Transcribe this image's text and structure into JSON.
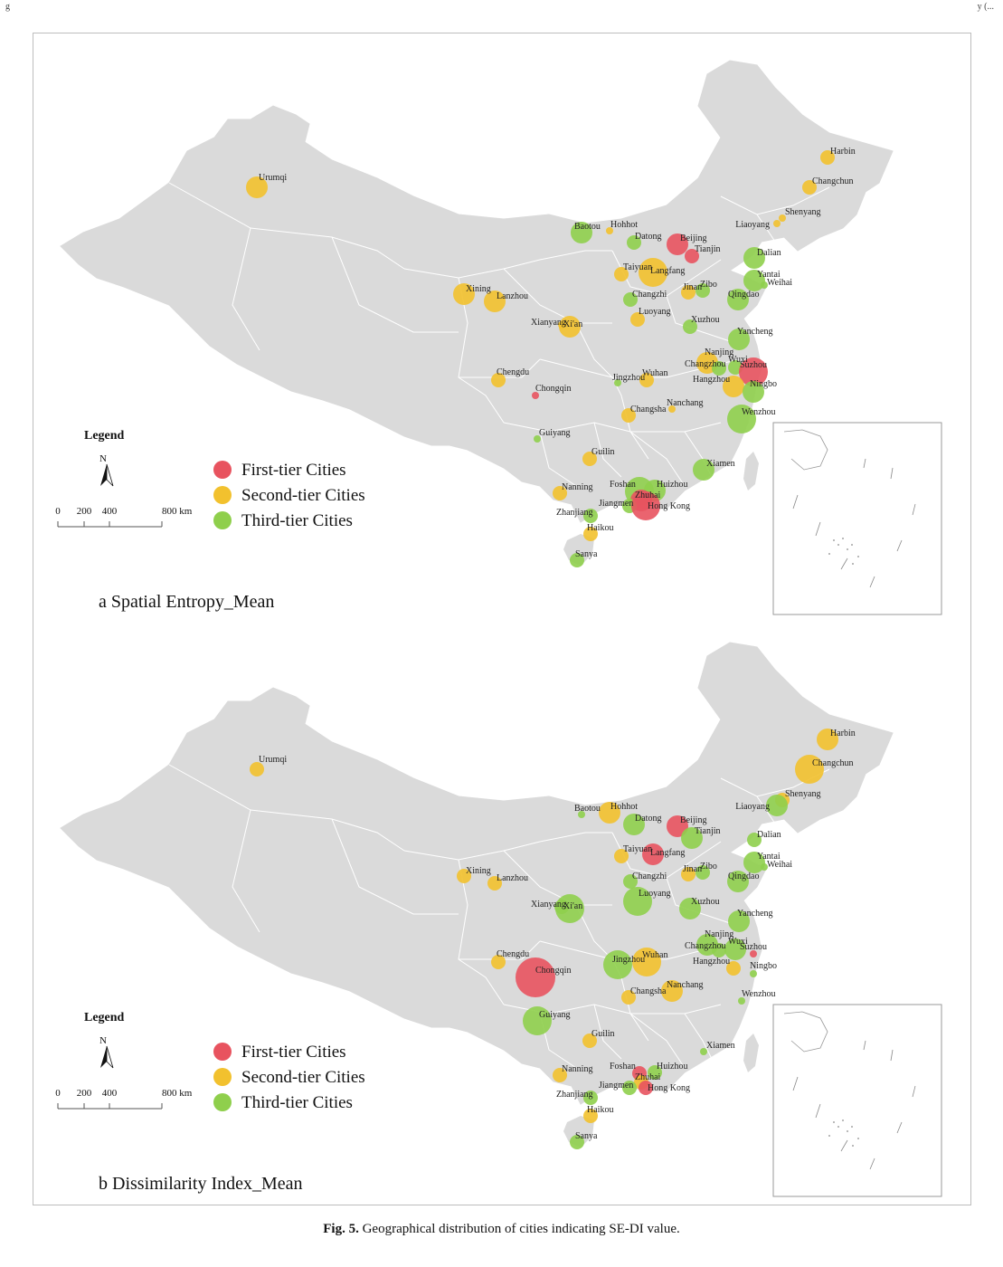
{
  "header": {
    "left_text": "g",
    "right_text": "y (..."
  },
  "caption": {
    "label": "Fig. 5.",
    "text": " Geographical distribution of cities indicating SE-DI value."
  },
  "legend": {
    "title": "Legend",
    "north": "N",
    "scale": [
      "0",
      "200",
      "400",
      "800 km"
    ],
    "items": [
      {
        "key": "first",
        "label": "First-tier Cities",
        "color": "#e8535f"
      },
      {
        "key": "second",
        "label": "Second-tier Cities",
        "color": "#f2c12e"
      },
      {
        "key": "third",
        "label": "Third-tier Cities",
        "color": "#8fcf4c"
      }
    ]
  },
  "colors": {
    "land": "#dadada",
    "boundary": "#ffffff",
    "frame": "#bdbdbd"
  },
  "panels": [
    {
      "id": "a",
      "title": "a Spatial Entropy_Mean",
      "cities": [
        {
          "name": "Urumqi",
          "tier": "second",
          "size": "medium"
        },
        {
          "name": "Harbin",
          "tier": "second",
          "size": "small"
        },
        {
          "name": "Changchun",
          "tier": "second",
          "size": "small"
        },
        {
          "name": "Shenyang",
          "tier": "second",
          "size": "tiny"
        },
        {
          "name": "Liaoyang",
          "tier": "second",
          "size": "tiny"
        },
        {
          "name": "Baotou",
          "tier": "third",
          "size": "medium"
        },
        {
          "name": "Hohhot",
          "tier": "second",
          "size": "tiny"
        },
        {
          "name": "Datong",
          "tier": "third",
          "size": "small"
        },
        {
          "name": "Beijing",
          "tier": "first",
          "size": "medium"
        },
        {
          "name": "Tianjin",
          "tier": "first",
          "size": "small"
        },
        {
          "name": "Langfang",
          "tier": "second",
          "size": "large"
        },
        {
          "name": "Dalian",
          "tier": "third",
          "size": "medium"
        },
        {
          "name": "Taiyuan",
          "tier": "second",
          "size": "small"
        },
        {
          "name": "Yantai",
          "tier": "third",
          "size": "medium"
        },
        {
          "name": "Weihai",
          "tier": "third",
          "size": "tiny"
        },
        {
          "name": "Xining",
          "tier": "second",
          "size": "medium"
        },
        {
          "name": "Lanzhou",
          "tier": "second",
          "size": "medium"
        },
        {
          "name": "Jinan",
          "tier": "second",
          "size": "small"
        },
        {
          "name": "Zibo",
          "tier": "third",
          "size": "small"
        },
        {
          "name": "Qingdao",
          "tier": "third",
          "size": "medium"
        },
        {
          "name": "Changzhi",
          "tier": "third",
          "size": "small"
        },
        {
          "name": "Xianyang",
          "tier": "second",
          "size": "tiny"
        },
        {
          "name": "Xi'an",
          "tier": "second",
          "size": "medium"
        },
        {
          "name": "Luoyang",
          "tier": "second",
          "size": "small"
        },
        {
          "name": "Xuzhou",
          "tier": "third",
          "size": "small"
        },
        {
          "name": "Yancheng",
          "tier": "third",
          "size": "medium"
        },
        {
          "name": "Nanjing",
          "tier": "second",
          "size": "medium"
        },
        {
          "name": "Changzhou",
          "tier": "third",
          "size": "small"
        },
        {
          "name": "Wuxi",
          "tier": "third",
          "size": "small"
        },
        {
          "name": "Suzhou",
          "tier": "first",
          "size": "large"
        },
        {
          "name": "Hangzhou",
          "tier": "second",
          "size": "medium"
        },
        {
          "name": "Ningbo",
          "tier": "third",
          "size": "medium"
        },
        {
          "name": "Chengdu",
          "tier": "second",
          "size": "small"
        },
        {
          "name": "Jingzhou",
          "tier": "third",
          "size": "tiny"
        },
        {
          "name": "Wuhan",
          "tier": "second",
          "size": "small"
        },
        {
          "name": "Chongqin",
          "tier": "first",
          "size": "tiny"
        },
        {
          "name": "Nanchang",
          "tier": "second",
          "size": "tiny"
        },
        {
          "name": "Changsha",
          "tier": "second",
          "size": "small"
        },
        {
          "name": "Wenzhou",
          "tier": "third",
          "size": "large"
        },
        {
          "name": "Guiyang",
          "tier": "third",
          "size": "tiny"
        },
        {
          "name": "Guilin",
          "tier": "second",
          "size": "small"
        },
        {
          "name": "Xiamen",
          "tier": "third",
          "size": "medium"
        },
        {
          "name": "Nanning",
          "tier": "second",
          "size": "small"
        },
        {
          "name": "Foshan",
          "tier": "third",
          "size": "large"
        },
        {
          "name": "Huizhou",
          "tier": "third",
          "size": "medium"
        },
        {
          "name": "Zhuhai",
          "tier": "first",
          "size": "medium"
        },
        {
          "name": "Jiangmen",
          "tier": "third",
          "size": "small"
        },
        {
          "name": "Hong Kong",
          "tier": "first",
          "size": "large"
        },
        {
          "name": "Zhanjiang",
          "tier": "third",
          "size": "small"
        },
        {
          "name": "Haikou",
          "tier": "second",
          "size": "small"
        },
        {
          "name": "Sanya",
          "tier": "third",
          "size": "small"
        }
      ]
    },
    {
      "id": "b",
      "title": "b Dissimilarity Index_Mean",
      "cities": [
        {
          "name": "Urumqi",
          "tier": "second",
          "size": "small"
        },
        {
          "name": "Harbin",
          "tier": "second",
          "size": "medium"
        },
        {
          "name": "Changchun",
          "tier": "second",
          "size": "large"
        },
        {
          "name": "Shenyang",
          "tier": "second",
          "size": "small"
        },
        {
          "name": "Liaoyang",
          "tier": "third",
          "size": "medium"
        },
        {
          "name": "Baotou",
          "tier": "third",
          "size": "tiny"
        },
        {
          "name": "Hohhot",
          "tier": "second",
          "size": "medium"
        },
        {
          "name": "Datong",
          "tier": "third",
          "size": "medium"
        },
        {
          "name": "Beijing",
          "tier": "first",
          "size": "medium"
        },
        {
          "name": "Tianjin",
          "tier": "third",
          "size": "medium"
        },
        {
          "name": "Langfang",
          "tier": "first",
          "size": "medium"
        },
        {
          "name": "Dalian",
          "tier": "third",
          "size": "small"
        },
        {
          "name": "Taiyuan",
          "tier": "second",
          "size": "small"
        },
        {
          "name": "Yantai",
          "tier": "third",
          "size": "medium"
        },
        {
          "name": "Weihai",
          "tier": "third",
          "size": "tiny"
        },
        {
          "name": "Xining",
          "tier": "second",
          "size": "small"
        },
        {
          "name": "Lanzhou",
          "tier": "second",
          "size": "small"
        },
        {
          "name": "Jinan",
          "tier": "second",
          "size": "small"
        },
        {
          "name": "Zibo",
          "tier": "third",
          "size": "small"
        },
        {
          "name": "Qingdao",
          "tier": "third",
          "size": "medium"
        },
        {
          "name": "Changzhi",
          "tier": "third",
          "size": "small"
        },
        {
          "name": "Xianyang",
          "tier": "third",
          "size": "small"
        },
        {
          "name": "Xi'an",
          "tier": "third",
          "size": "large"
        },
        {
          "name": "Luoyang",
          "tier": "third",
          "size": "large"
        },
        {
          "name": "Xuzhou",
          "tier": "third",
          "size": "medium"
        },
        {
          "name": "Yancheng",
          "tier": "third",
          "size": "medium"
        },
        {
          "name": "Nanjing",
          "tier": "third",
          "size": "medium"
        },
        {
          "name": "Changzhou",
          "tier": "third",
          "size": "small"
        },
        {
          "name": "Wuxi",
          "tier": "third",
          "size": "medium"
        },
        {
          "name": "Suzhou",
          "tier": "first",
          "size": "tiny"
        },
        {
          "name": "Hangzhou",
          "tier": "second",
          "size": "small"
        },
        {
          "name": "Ningbo",
          "tier": "third",
          "size": "tiny"
        },
        {
          "name": "Chengdu",
          "tier": "second",
          "size": "small"
        },
        {
          "name": "Jingzhou",
          "tier": "third",
          "size": "large"
        },
        {
          "name": "Wuhan",
          "tier": "second",
          "size": "large"
        },
        {
          "name": "Chongqin",
          "tier": "first",
          "size": "xlarge"
        },
        {
          "name": "Nanchang",
          "tier": "second",
          "size": "medium"
        },
        {
          "name": "Changsha",
          "tier": "second",
          "size": "small"
        },
        {
          "name": "Wenzhou",
          "tier": "third",
          "size": "tiny"
        },
        {
          "name": "Guiyang",
          "tier": "third",
          "size": "large"
        },
        {
          "name": "Guilin",
          "tier": "second",
          "size": "small"
        },
        {
          "name": "Xiamen",
          "tier": "third",
          "size": "tiny"
        },
        {
          "name": "Nanning",
          "tier": "second",
          "size": "small"
        },
        {
          "name": "Foshan",
          "tier": "first",
          "size": "small"
        },
        {
          "name": "Huizhou",
          "tier": "third",
          "size": "small"
        },
        {
          "name": "Zhuhai",
          "tier": "second",
          "size": "small"
        },
        {
          "name": "Jiangmen",
          "tier": "third",
          "size": "small"
        },
        {
          "name": "Hong Kong",
          "tier": "first",
          "size": "small"
        },
        {
          "name": "Zhanjiang",
          "tier": "third",
          "size": "small"
        },
        {
          "name": "Haikou",
          "tier": "second",
          "size": "small"
        },
        {
          "name": "Sanya",
          "tier": "third",
          "size": "small"
        }
      ]
    }
  ]
}
